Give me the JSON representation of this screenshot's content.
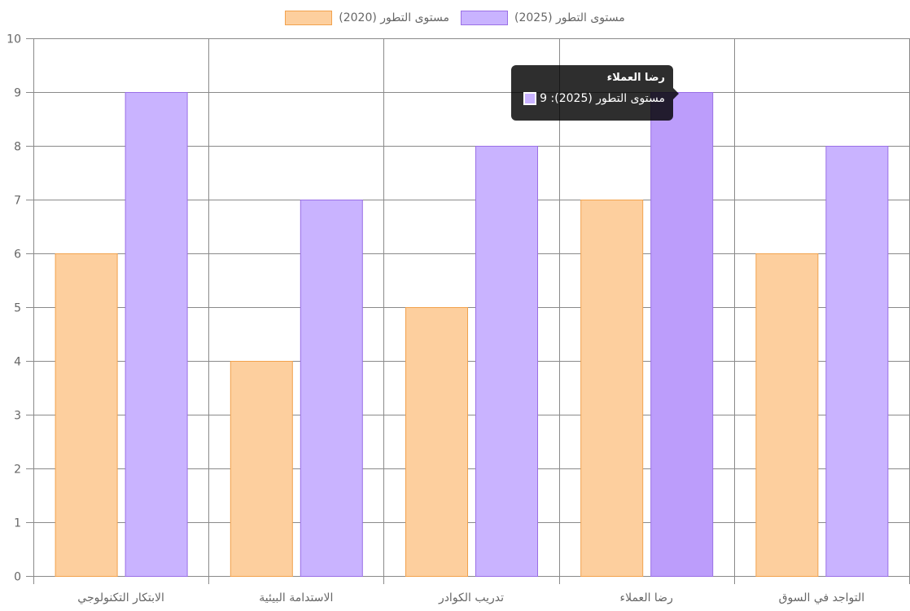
{
  "legend": {
    "items": [
      {
        "label": "مستوى التطور (2025)",
        "color": "#c9b3ff",
        "border": "#9a6fe6"
      },
      {
        "label": "مستوى التطور (2020)",
        "color": "#fdcf9e",
        "border": "#f2a24d"
      }
    ]
  },
  "tooltip": {
    "title": "رضا العملاء",
    "text": "مستوى التطور (2025): 9",
    "swatch_color": "#c9b3ff"
  },
  "colors": {
    "series_2020_fill": "#fdcf9e",
    "series_2020_border": "#f2a24d",
    "series_2025_fill": "#c9b3ff",
    "series_2025_border": "#9a6fe6",
    "series_2025_hover_fill": "#bc9dfb",
    "grid": "#8a8a8a",
    "tick_text": "#666666"
  },
  "chart_data": {
    "type": "bar",
    "categories": [
      "الابتكار التكنولوجي",
      "الاستدامة البيئية",
      "تدريب الكوادر",
      "رضا العملاء",
      "التواجد في السوق"
    ],
    "series": [
      {
        "name": "مستوى التطور (2020)",
        "values": [
          6,
          4,
          5,
          7,
          6
        ]
      },
      {
        "name": "مستوى التطور (2025)",
        "values": [
          9,
          7,
          8,
          9,
          8
        ]
      }
    ],
    "ylim": [
      0,
      10
    ],
    "yticks": [
      0,
      1,
      2,
      3,
      4,
      5,
      6,
      7,
      8,
      9,
      10
    ],
    "grid": true,
    "legend_position": "top",
    "highlighted": {
      "series": 1,
      "category": 3
    },
    "title": "",
    "xlabel": "",
    "ylabel": ""
  }
}
